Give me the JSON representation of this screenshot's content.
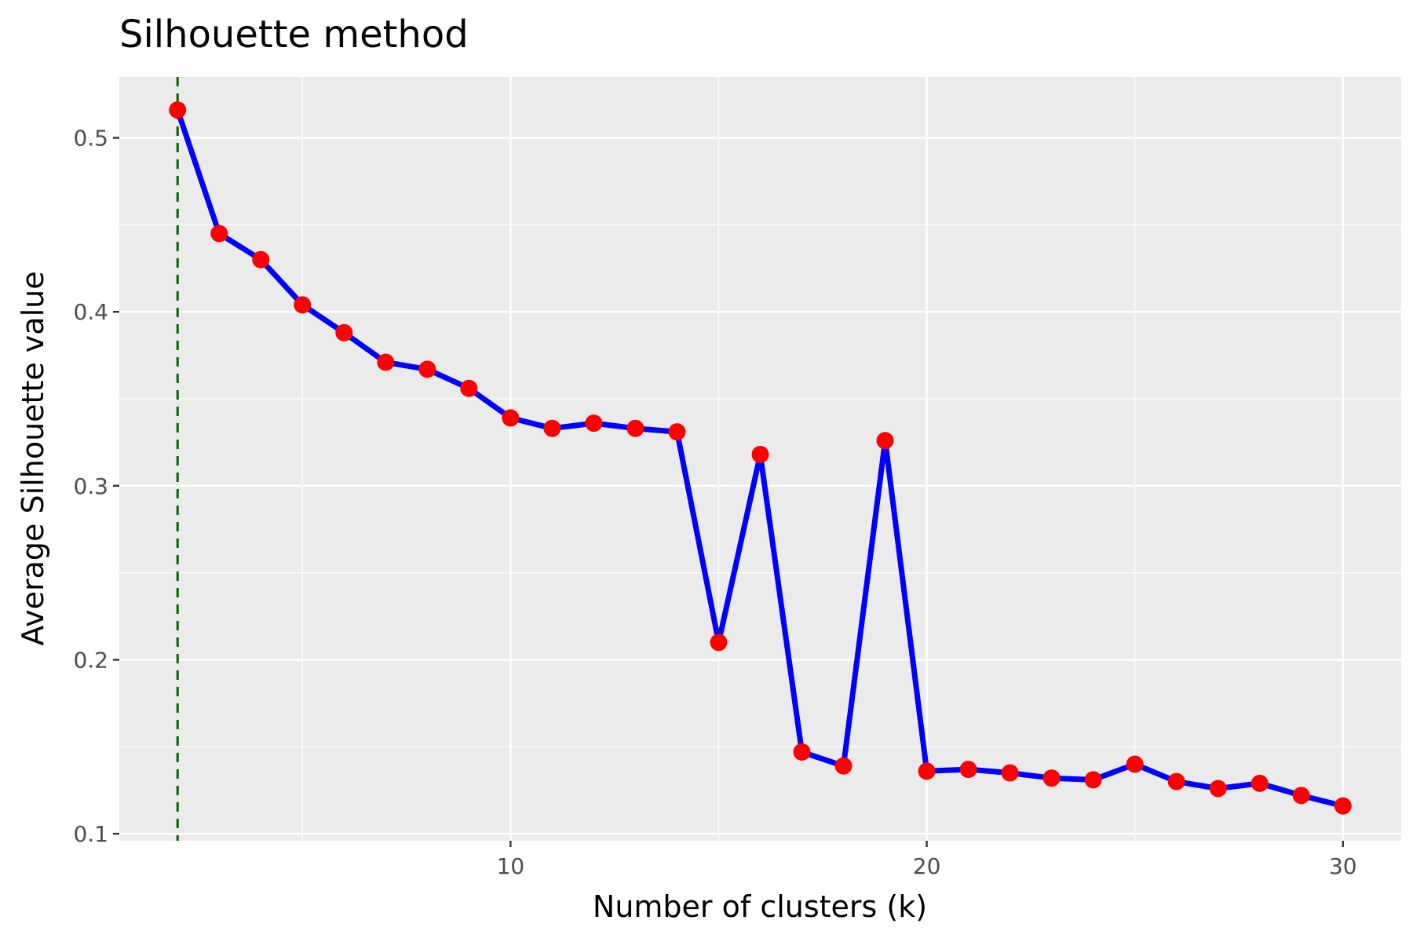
{
  "chart_data": {
    "type": "line",
    "title": "Silhouette method",
    "xlabel": "Number of clusters (k)",
    "ylabel": "Average Silhouette value",
    "xlim": [
      0.6,
      31.4
    ],
    "ylim": [
      0.096,
      0.535
    ],
    "x_ticks": [
      10,
      20,
      30
    ],
    "x_minor_ticks": [
      5,
      15,
      25
    ],
    "y_ticks": [
      0.1,
      0.2,
      0.3,
      0.4,
      0.5
    ],
    "y_minor_ticks": [
      0.15,
      0.25,
      0.35,
      0.45
    ],
    "grid": true,
    "optimal_k": 2,
    "series": [
      {
        "x": [
          2,
          3,
          4,
          5,
          6,
          7,
          8,
          9,
          10,
          11,
          12,
          13,
          14,
          15,
          16,
          17,
          18,
          19,
          20,
          21,
          22,
          23,
          24,
          25,
          26,
          27,
          28,
          29,
          30
        ],
        "values": [
          0.516,
          0.445,
          0.43,
          0.404,
          0.388,
          0.371,
          0.367,
          0.356,
          0.339,
          0.333,
          0.336,
          0.333,
          0.331,
          0.21,
          0.318,
          0.147,
          0.139,
          0.326,
          0.136,
          0.137,
          0.135,
          0.132,
          0.131,
          0.14,
          0.13,
          0.126,
          0.129,
          0.122,
          0.116
        ]
      }
    ],
    "colors": {
      "line": "#0000ff",
      "points": "#ff0000",
      "vline": "#006400",
      "panel": "#ebebeb",
      "grid": "#ffffff",
      "tick_text": "#4d4d4d",
      "tick_mark": "#333333"
    }
  }
}
